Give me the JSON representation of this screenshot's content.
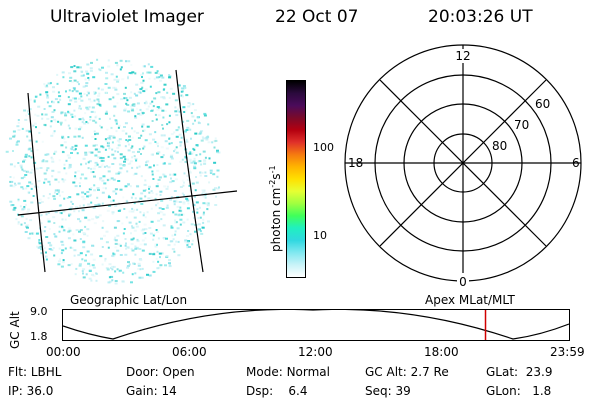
{
  "header": {
    "title": "Ultraviolet Imager",
    "date": "22 Oct 07",
    "time": "20:03:26 UT"
  },
  "polar_plot": {
    "labels_mlt": [
      "12",
      "18",
      "6",
      "0"
    ],
    "labels_lat": [
      "60",
      "70",
      "80"
    ]
  },
  "colorbar": {
    "unit_label_base": "photon cm",
    "unit_exp1": "-2",
    "unit_mid": "s",
    "unit_exp2": "-1",
    "tick_100": "100",
    "tick_10": "10",
    "colors": [
      "#000000",
      "#2b0a3d",
      "#4b0b5b",
      "#7a0a2a",
      "#b40010",
      "#e0302a",
      "#f57a10",
      "#ffb400",
      "#ffe000",
      "#e6ff33",
      "#a0ff40",
      "#40ff5a",
      "#20f0c0",
      "#30d8e0",
      "#80e8f0",
      "#c8f3f8",
      "#ffffff"
    ]
  },
  "panel_labels": {
    "left": "Geographic Lat/Lon",
    "right": "Apex MLat/MLT"
  },
  "gc_alt": {
    "axis_label": "GC Alt",
    "ytick_top": "9.0",
    "ytick_bottom": "1.8",
    "xticks": [
      "00:00",
      "06:00",
      "12:00",
      "18:00",
      "23:59"
    ],
    "marker_time_fraction": 0.835
  },
  "footer": {
    "row1": [
      {
        "label": "Flt:",
        "value": "LBHL"
      },
      {
        "label": "Door:",
        "value": "Open"
      },
      {
        "label": "Mode:",
        "value": "Normal"
      },
      {
        "label": "GC Alt:",
        "value": "2.7 Re"
      },
      {
        "label": "GLat:",
        "value": "23.9"
      }
    ],
    "row2": [
      {
        "label": "IP:",
        "value": "36.0"
      },
      {
        "label": "Gain:",
        "value": "14"
      },
      {
        "label": "Dsp:",
        "value": "6.4"
      },
      {
        "label": "Seq:",
        "value": "39"
      },
      {
        "label": "GLon:",
        "value": "1.8"
      }
    ]
  }
}
